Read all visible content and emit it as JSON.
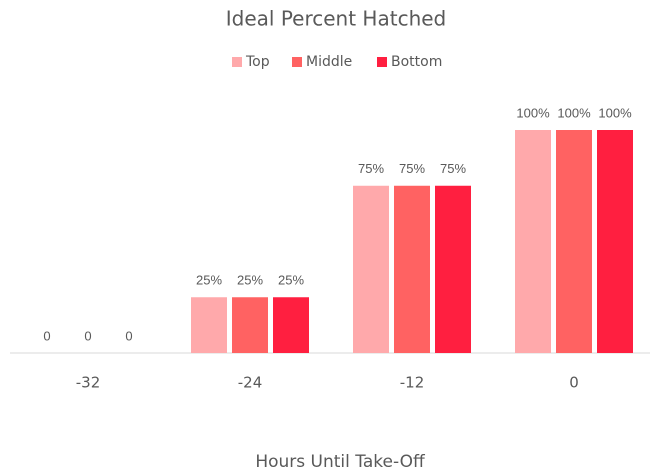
{
  "chart_data": {
    "type": "bar",
    "title": "Ideal Percent Hatched",
    "x_label": "Hours Until Take-Off",
    "categories": [
      "-32",
      "-24",
      "-12",
      "0"
    ],
    "series": [
      {
        "name": "Top",
        "color": "#ffa9ab",
        "values": [
          0,
          25,
          75,
          100
        ],
        "value_labels": [
          "0",
          "25%",
          "75%",
          "100%"
        ]
      },
      {
        "name": "Middle",
        "color": "#ff6262",
        "values": [
          0,
          25,
          75,
          100
        ],
        "value_labels": [
          "0",
          "25%",
          "75%",
          "100%"
        ]
      },
      {
        "name": "Bottom",
        "color": "#ff1f40",
        "values": [
          0,
          25,
          75,
          100
        ],
        "value_labels": [
          "0",
          "25%",
          "75%",
          "100%"
        ]
      }
    ],
    "legend": "top"
  }
}
